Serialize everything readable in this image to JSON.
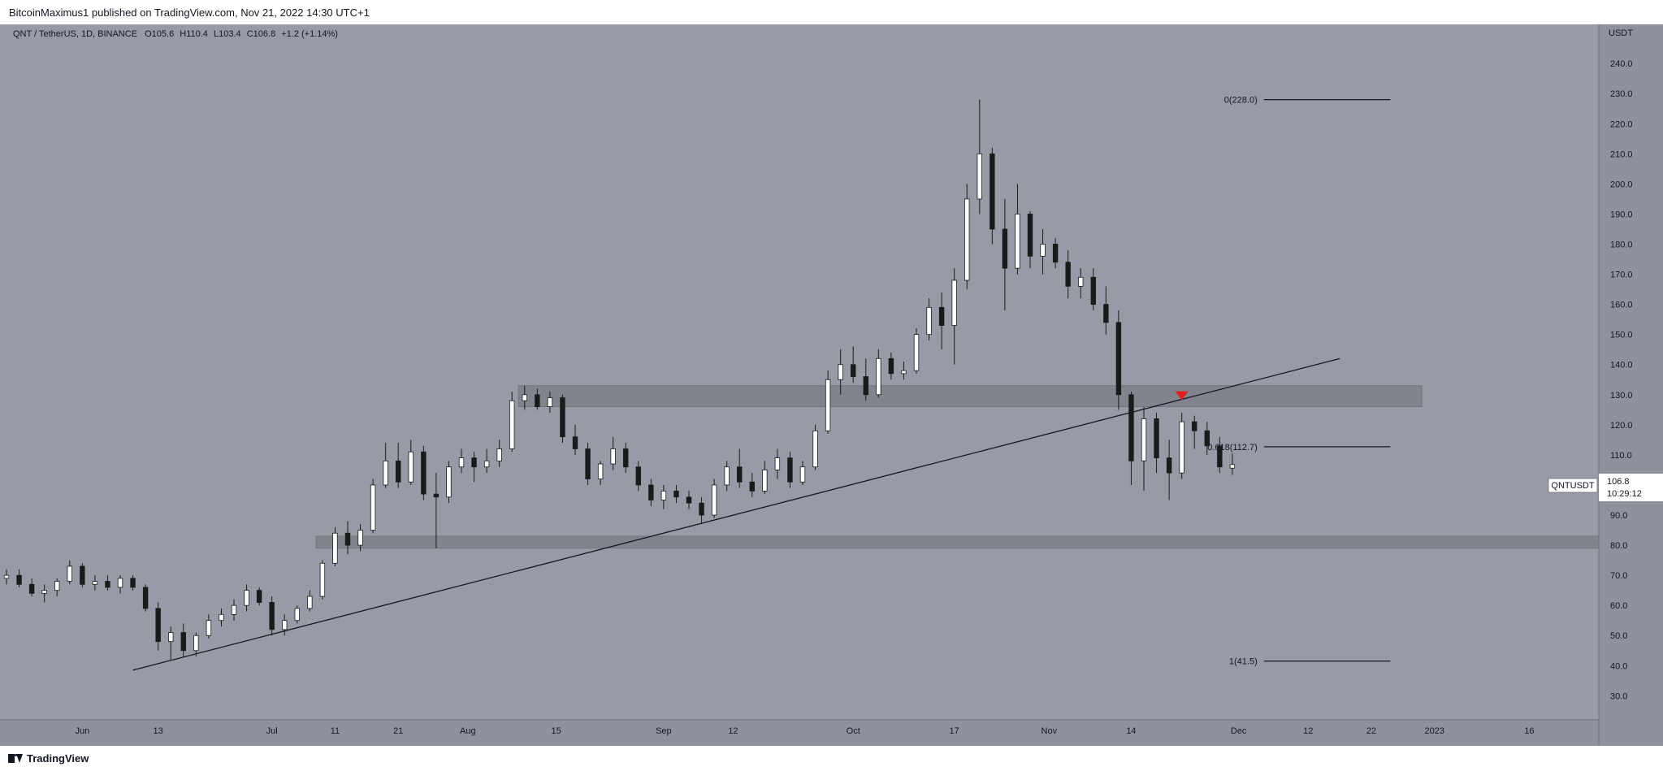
{
  "header": {
    "publisher_line": "BitcoinMaximus1 published on TradingView.com, Nov 21, 2022 14:30 UTC+1"
  },
  "footer": {
    "brand": "TradingView"
  },
  "colors": {
    "background": "#989ba5",
    "axis_background": "#8f929c",
    "up_body": "#ffffff",
    "down_body": "#1a1a1a",
    "wick": "#1a1a1a",
    "zone": "#7a7c86",
    "marker": "#e01f1f"
  },
  "chart_data": {
    "type": "candlestick",
    "symbol_line": {
      "symbol": "QNT / TetherUS, 1D, BINANCE",
      "o_label": "O",
      "o": "105.6",
      "h_label": "H",
      "h": "110.4",
      "l_label": "L",
      "l": "103.4",
      "c_label": "C",
      "c": "106.8",
      "change": "+1.2 (+1.14%)"
    },
    "y_axis": {
      "unit": "USDT",
      "min": 22,
      "max": 253,
      "ticks": [
        30,
        40,
        50,
        60,
        70,
        80,
        90,
        100,
        110,
        120,
        130,
        140,
        150,
        160,
        170,
        180,
        190,
        200,
        210,
        220,
        230,
        240
      ]
    },
    "x_axis": {
      "start": "2022-05-20",
      "end": "2023-01-27",
      "ticks": [
        {
          "date": "2022-06-01",
          "label": "Jun"
        },
        {
          "date": "2022-06-13",
          "label": "13"
        },
        {
          "date": "2022-07-01",
          "label": "Jul"
        },
        {
          "date": "2022-07-11",
          "label": "11"
        },
        {
          "date": "2022-07-21",
          "label": "21"
        },
        {
          "date": "2022-08-01",
          "label": "Aug"
        },
        {
          "date": "2022-08-15",
          "label": "15"
        },
        {
          "date": "2022-09-01",
          "label": "Sep"
        },
        {
          "date": "2022-09-12",
          "label": "12"
        },
        {
          "date": "2022-10-01",
          "label": "Oct"
        },
        {
          "date": "2022-10-17",
          "label": "17"
        },
        {
          "date": "2022-11-01",
          "label": "Nov"
        },
        {
          "date": "2022-11-14",
          "label": "14"
        },
        {
          "date": "2022-12-01",
          "label": "Dec"
        },
        {
          "date": "2022-12-12",
          "label": "12"
        },
        {
          "date": "2022-12-22",
          "label": "22"
        },
        {
          "date": "2023-01-01",
          "label": "2023"
        },
        {
          "date": "2023-01-16",
          "label": "16"
        }
      ]
    },
    "candles": [
      {
        "d": "2022-05-20",
        "o": 69,
        "h": 72,
        "l": 67,
        "c": 70
      },
      {
        "d": "2022-05-22",
        "o": 70,
        "h": 72,
        "l": 66,
        "c": 67
      },
      {
        "d": "2022-05-24",
        "o": 67,
        "h": 69,
        "l": 63,
        "c": 64
      },
      {
        "d": "2022-05-26",
        "o": 64,
        "h": 67,
        "l": 61,
        "c": 65
      },
      {
        "d": "2022-05-28",
        "o": 65,
        "h": 69,
        "l": 63,
        "c": 68
      },
      {
        "d": "2022-05-30",
        "o": 68,
        "h": 75,
        "l": 67,
        "c": 73
      },
      {
        "d": "2022-06-01",
        "o": 73,
        "h": 74,
        "l": 66,
        "c": 67
      },
      {
        "d": "2022-06-03",
        "o": 67,
        "h": 70,
        "l": 65,
        "c": 68
      },
      {
        "d": "2022-06-05",
        "o": 68,
        "h": 70,
        "l": 65,
        "c": 66
      },
      {
        "d": "2022-06-07",
        "o": 66,
        "h": 70,
        "l": 64,
        "c": 69
      },
      {
        "d": "2022-06-09",
        "o": 69,
        "h": 70,
        "l": 65,
        "c": 66
      },
      {
        "d": "2022-06-11",
        "o": 66,
        "h": 67,
        "l": 58,
        "c": 59
      },
      {
        "d": "2022-06-13",
        "o": 59,
        "h": 61,
        "l": 45,
        "c": 48
      },
      {
        "d": "2022-06-15",
        "o": 48,
        "h": 53,
        "l": 42,
        "c": 51
      },
      {
        "d": "2022-06-17",
        "o": 51,
        "h": 54,
        "l": 43,
        "c": 45
      },
      {
        "d": "2022-06-19",
        "o": 45,
        "h": 51,
        "l": 43,
        "c": 50
      },
      {
        "d": "2022-06-21",
        "o": 50,
        "h": 57,
        "l": 49,
        "c": 55
      },
      {
        "d": "2022-06-23",
        "o": 55,
        "h": 59,
        "l": 53,
        "c": 57
      },
      {
        "d": "2022-06-25",
        "o": 57,
        "h": 62,
        "l": 55,
        "c": 60
      },
      {
        "d": "2022-06-27",
        "o": 60,
        "h": 67,
        "l": 58,
        "c": 65
      },
      {
        "d": "2022-06-29",
        "o": 65,
        "h": 66,
        "l": 60,
        "c": 61
      },
      {
        "d": "2022-07-01",
        "o": 61,
        "h": 63,
        "l": 50,
        "c": 52
      },
      {
        "d": "2022-07-03",
        "o": 52,
        "h": 57,
        "l": 50,
        "c": 55
      },
      {
        "d": "2022-07-05",
        "o": 55,
        "h": 60,
        "l": 54,
        "c": 59
      },
      {
        "d": "2022-07-07",
        "o": 59,
        "h": 65,
        "l": 58,
        "c": 63
      },
      {
        "d": "2022-07-09",
        "o": 63,
        "h": 75,
        "l": 62,
        "c": 74
      },
      {
        "d": "2022-07-11",
        "o": 74,
        "h": 86,
        "l": 73,
        "c": 84
      },
      {
        "d": "2022-07-13",
        "o": 84,
        "h": 88,
        "l": 77,
        "c": 80
      },
      {
        "d": "2022-07-15",
        "o": 80,
        "h": 87,
        "l": 78,
        "c": 85
      },
      {
        "d": "2022-07-17",
        "o": 85,
        "h": 102,
        "l": 84,
        "c": 100
      },
      {
        "d": "2022-07-19",
        "o": 100,
        "h": 114,
        "l": 99,
        "c": 108
      },
      {
        "d": "2022-07-21",
        "o": 108,
        "h": 114,
        "l": 99,
        "c": 101
      },
      {
        "d": "2022-07-23",
        "o": 101,
        "h": 115,
        "l": 100,
        "c": 111
      },
      {
        "d": "2022-07-25",
        "o": 111,
        "h": 113,
        "l": 95,
        "c": 97
      },
      {
        "d": "2022-07-27",
        "o": 97,
        "h": 104,
        "l": 79,
        "c": 96
      },
      {
        "d": "2022-07-29",
        "o": 96,
        "h": 108,
        "l": 94,
        "c": 106
      },
      {
        "d": "2022-07-31",
        "o": 106,
        "h": 112,
        "l": 104,
        "c": 109
      },
      {
        "d": "2022-08-02",
        "o": 109,
        "h": 111,
        "l": 101,
        "c": 106
      },
      {
        "d": "2022-08-04",
        "o": 106,
        "h": 112,
        "l": 104,
        "c": 108
      },
      {
        "d": "2022-08-06",
        "o": 108,
        "h": 115,
        "l": 106,
        "c": 112
      },
      {
        "d": "2022-08-08",
        "o": 112,
        "h": 131,
        "l": 111,
        "c": 128
      },
      {
        "d": "2022-08-10",
        "o": 128,
        "h": 133,
        "l": 125,
        "c": 130
      },
      {
        "d": "2022-08-12",
        "o": 130,
        "h": 132,
        "l": 125,
        "c": 126
      },
      {
        "d": "2022-08-14",
        "o": 126,
        "h": 131,
        "l": 124,
        "c": 129
      },
      {
        "d": "2022-08-16",
        "o": 129,
        "h": 130,
        "l": 114,
        "c": 116
      },
      {
        "d": "2022-08-18",
        "o": 116,
        "h": 120,
        "l": 110,
        "c": 112
      },
      {
        "d": "2022-08-20",
        "o": 112,
        "h": 114,
        "l": 100,
        "c": 102
      },
      {
        "d": "2022-08-22",
        "o": 102,
        "h": 108,
        "l": 100,
        "c": 107
      },
      {
        "d": "2022-08-24",
        "o": 107,
        "h": 116,
        "l": 105,
        "c": 112
      },
      {
        "d": "2022-08-26",
        "o": 112,
        "h": 114,
        "l": 104,
        "c": 106
      },
      {
        "d": "2022-08-28",
        "o": 106,
        "h": 108,
        "l": 98,
        "c": 100
      },
      {
        "d": "2022-08-30",
        "o": 100,
        "h": 102,
        "l": 93,
        "c": 95
      },
      {
        "d": "2022-09-01",
        "o": 95,
        "h": 100,
        "l": 92,
        "c": 98
      },
      {
        "d": "2022-09-03",
        "o": 98,
        "h": 100,
        "l": 94,
        "c": 96
      },
      {
        "d": "2022-09-05",
        "o": 96,
        "h": 98,
        "l": 92,
        "c": 94
      },
      {
        "d": "2022-09-07",
        "o": 94,
        "h": 96,
        "l": 87,
        "c": 90
      },
      {
        "d": "2022-09-09",
        "o": 90,
        "h": 102,
        "l": 89,
        "c": 100
      },
      {
        "d": "2022-09-11",
        "o": 100,
        "h": 108,
        "l": 98,
        "c": 106
      },
      {
        "d": "2022-09-13",
        "o": 106,
        "h": 112,
        "l": 99,
        "c": 101
      },
      {
        "d": "2022-09-15",
        "o": 101,
        "h": 104,
        "l": 96,
        "c": 98
      },
      {
        "d": "2022-09-17",
        "o": 98,
        "h": 108,
        "l": 97,
        "c": 105
      },
      {
        "d": "2022-09-19",
        "o": 105,
        "h": 112,
        "l": 102,
        "c": 109
      },
      {
        "d": "2022-09-21",
        "o": 109,
        "h": 111,
        "l": 99,
        "c": 101
      },
      {
        "d": "2022-09-23",
        "o": 101,
        "h": 108,
        "l": 100,
        "c": 106
      },
      {
        "d": "2022-09-25",
        "o": 106,
        "h": 120,
        "l": 105,
        "c": 118
      },
      {
        "d": "2022-09-27",
        "o": 118,
        "h": 138,
        "l": 117,
        "c": 135
      },
      {
        "d": "2022-09-29",
        "o": 135,
        "h": 145,
        "l": 130,
        "c": 140
      },
      {
        "d": "2022-10-01",
        "o": 140,
        "h": 146,
        "l": 134,
        "c": 136
      },
      {
        "d": "2022-10-03",
        "o": 136,
        "h": 142,
        "l": 128,
        "c": 130
      },
      {
        "d": "2022-10-05",
        "o": 130,
        "h": 145,
        "l": 129,
        "c": 142
      },
      {
        "d": "2022-10-07",
        "o": 142,
        "h": 144,
        "l": 135,
        "c": 137
      },
      {
        "d": "2022-10-09",
        "o": 137,
        "h": 141,
        "l": 135,
        "c": 138
      },
      {
        "d": "2022-10-11",
        "o": 138,
        "h": 152,
        "l": 137,
        "c": 150
      },
      {
        "d": "2022-10-13",
        "o": 150,
        "h": 162,
        "l": 148,
        "c": 159
      },
      {
        "d": "2022-10-15",
        "o": 159,
        "h": 164,
        "l": 145,
        "c": 153
      },
      {
        "d": "2022-10-17",
        "o": 153,
        "h": 172,
        "l": 140,
        "c": 168
      },
      {
        "d": "2022-10-19",
        "o": 168,
        "h": 200,
        "l": 165,
        "c": 195
      },
      {
        "d": "2022-10-21",
        "o": 195,
        "h": 228,
        "l": 190,
        "c": 210
      },
      {
        "d": "2022-10-23",
        "o": 210,
        "h": 212,
        "l": 180,
        "c": 185
      },
      {
        "d": "2022-10-25",
        "o": 185,
        "h": 195,
        "l": 158,
        "c": 172
      },
      {
        "d": "2022-10-27",
        "o": 172,
        "h": 200,
        "l": 170,
        "c": 190
      },
      {
        "d": "2022-10-29",
        "o": 190,
        "h": 191,
        "l": 172,
        "c": 176
      },
      {
        "d": "2022-10-31",
        "o": 176,
        "h": 185,
        "l": 170,
        "c": 180
      },
      {
        "d": "2022-11-02",
        "o": 180,
        "h": 182,
        "l": 172,
        "c": 174
      },
      {
        "d": "2022-11-04",
        "o": 174,
        "h": 178,
        "l": 162,
        "c": 166
      },
      {
        "d": "2022-11-06",
        "o": 166,
        "h": 172,
        "l": 162,
        "c": 169
      },
      {
        "d": "2022-11-08",
        "o": 169,
        "h": 172,
        "l": 158,
        "c": 160
      },
      {
        "d": "2022-11-10",
        "o": 160,
        "h": 166,
        "l": 150,
        "c": 154
      },
      {
        "d": "2022-11-12",
        "o": 154,
        "h": 158,
        "l": 125,
        "c": 130
      },
      {
        "d": "2022-11-14",
        "o": 130,
        "h": 131,
        "l": 100,
        "c": 108
      },
      {
        "d": "2022-11-16",
        "o": 108,
        "h": 126,
        "l": 98,
        "c": 122
      },
      {
        "d": "2022-11-18",
        "o": 122,
        "h": 124,
        "l": 104,
        "c": 109
      },
      {
        "d": "2022-11-20",
        "o": 109,
        "h": 115,
        "l": 95,
        "c": 104
      },
      {
        "d": "2022-11-22",
        "o": 104,
        "h": 124,
        "l": 102,
        "c": 121
      },
      {
        "d": "2022-11-24",
        "o": 121,
        "h": 123,
        "l": 112,
        "c": 118
      },
      {
        "d": "2022-11-26",
        "o": 118,
        "h": 121,
        "l": 110,
        "c": 113
      },
      {
        "d": "2022-11-28",
        "o": 113,
        "h": 116,
        "l": 104,
        "c": 106
      },
      {
        "d": "2022-11-30",
        "o": 105.6,
        "h": 110.4,
        "l": 103.4,
        "c": 106.8
      }
    ],
    "trendline": [
      {
        "d": "2022-06-09",
        "v": 38.5
      },
      {
        "d": "2022-12-17",
        "v": 142
      }
    ],
    "zones": [
      {
        "from": "2022-08-09",
        "to": "2022-12-30",
        "low": 126,
        "high": 133
      },
      {
        "from": "2022-07-08",
        "to": "2023-01-27",
        "low": 79,
        "high": 83
      }
    ],
    "fib_levels": [
      {
        "label": "0(228.0)",
        "value": 228,
        "from": "2022-12-05",
        "to": "2022-12-25"
      },
      {
        "label": "0.618(112.7)",
        "value": 112.7,
        "from": "2022-12-05",
        "to": "2022-12-25"
      },
      {
        "label": "1(41.5)",
        "value": 41.5,
        "from": "2022-12-05",
        "to": "2022-12-25"
      }
    ],
    "marker": {
      "d": "2022-11-22",
      "v": 129.5
    },
    "last_price": {
      "symbol": "QNTUSDT",
      "price": "106.8",
      "countdown": "10:29:12",
      "value": 106.8
    }
  }
}
